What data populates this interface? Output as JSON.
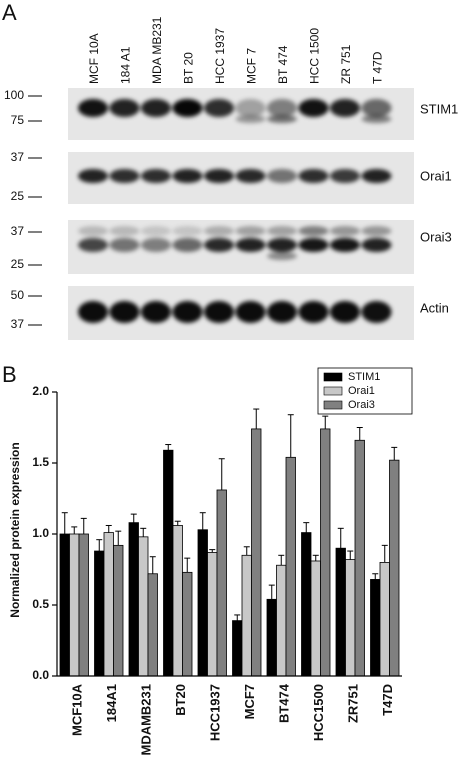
{
  "panel_a": {
    "label": "A",
    "lanes": [
      "MCF 10A",
      "184 A1",
      "MDA MB231",
      "BT 20",
      "HCC 1937",
      "MCF 7",
      "BT 474",
      "HCC 1500",
      "ZR 751",
      "T 47D"
    ],
    "blots": [
      {
        "protein": "STIM1",
        "markers": [
          100,
          75
        ]
      },
      {
        "protein": "Orai1",
        "markers": [
          37,
          25
        ]
      },
      {
        "protein": "Orai3",
        "markers": [
          37,
          25
        ]
      },
      {
        "protein": "Actin",
        "markers": [
          50,
          37
        ]
      }
    ]
  },
  "chart_data": {
    "type": "bar",
    "panel_label": "B",
    "ylabel": "Normalized protein expression",
    "categories": [
      "MCF10A",
      "184A1",
      "MDAMB231",
      "BT20",
      "HCC1937",
      "MCF7",
      "BT474",
      "HCC1500",
      "ZR751",
      "T47D"
    ],
    "series": [
      {
        "name": "STIM1",
        "color": "#000000",
        "values": [
          1.0,
          0.88,
          1.08,
          1.59,
          1.03,
          0.39,
          0.54,
          1.01,
          0.9,
          0.68
        ],
        "errors": [
          0.15,
          0.08,
          0.06,
          0.04,
          0.12,
          0.04,
          0.1,
          0.07,
          0.14,
          0.04
        ]
      },
      {
        "name": "Orai1",
        "color": "#c8c8c8",
        "values": [
          1.0,
          1.01,
          0.98,
          1.06,
          0.87,
          0.85,
          0.78,
          0.81,
          0.82,
          0.8
        ],
        "errors": [
          0.05,
          0.05,
          0.06,
          0.03,
          0.02,
          0.06,
          0.07,
          0.04,
          0.06,
          0.12
        ]
      },
      {
        "name": "Orai3",
        "color": "#808080",
        "values": [
          1.0,
          0.92,
          0.72,
          0.73,
          1.31,
          1.74,
          1.54,
          1.74,
          1.66,
          1.52
        ],
        "errors": [
          0.11,
          0.1,
          0.12,
          0.1,
          0.22,
          0.14,
          0.3,
          0.09,
          0.09,
          0.09
        ]
      }
    ],
    "ylim": [
      0,
      2
    ],
    "yticks": [
      {
        "value": 0,
        "label": "0.0"
      },
      0.5,
      {
        "value": 1,
        "label": "1.0"
      },
      1.5,
      {
        "value": 2,
        "label": "2.0"
      }
    ],
    "legend": "upper right"
  }
}
